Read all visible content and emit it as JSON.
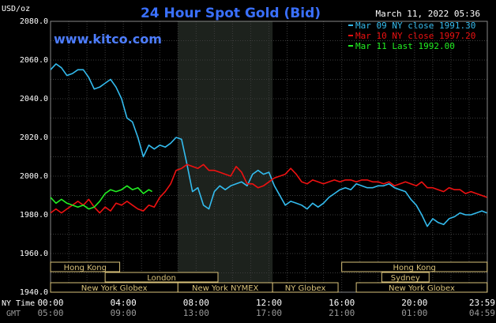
{
  "chart_data": {
    "type": "line",
    "title": "24 Hour Spot Gold (Bid)",
    "source": "www.kitco.com",
    "date_label": "March 11, 2022 05:36",
    "ylabel": "USD/oz",
    "ylim": [
      1940,
      2080
    ],
    "y_ticks": [
      "2080.0",
      "2060.0",
      "2040.0",
      "2020.0",
      "2000.0",
      "1980.0",
      "1960.0",
      "1940.0"
    ],
    "x_range_hours": [
      0,
      24
    ],
    "ny_time_label": "NY Time",
    "gmt_label": "GMT",
    "x_ticks_ny": [
      "00:00",
      "04:00",
      "08:00",
      "12:00",
      "16:00",
      "20:00",
      "23:59"
    ],
    "x_ticks_gmt": [
      "05:00",
      "09:00",
      "13:00",
      "17:00",
      "21:00",
      "01:00",
      "04:59"
    ],
    "x_tick_hours": [
      0,
      4,
      8,
      12,
      16,
      20,
      23.98
    ],
    "grid": true,
    "highlight_hours": [
      7,
      12.2
    ],
    "legend": {
      "position": "top-right",
      "entries": [
        {
          "label": "Mar 09 NY close 1991.30",
          "color": "#33bbee"
        },
        {
          "label": "Mar 10 NY close 1997.20",
          "color": "#ee1111"
        },
        {
          "label": "Mar 11 Last 1992.00",
          "color": "#22ee22"
        }
      ]
    },
    "sessions": [
      {
        "row": 0,
        "label": "Hong Kong",
        "start": 0,
        "end": 3.8
      },
      {
        "row": 0,
        "label": "Hong Kong",
        "start": 16,
        "end": 23.99
      },
      {
        "row": 1,
        "label": "London",
        "start": 3.0,
        "end": 9.2
      },
      {
        "row": 1,
        "label": "Sydney",
        "start": 18.2,
        "end": 20.8
      },
      {
        "row": 2,
        "label": "New York Globex",
        "start": 0,
        "end": 7.0
      },
      {
        "row": 2,
        "label": "New York NYMEX",
        "start": 7.0,
        "end": 12.2
      },
      {
        "row": 2,
        "label": "NY Globex",
        "start": 12.2,
        "end": 15.8
      },
      {
        "row": 2,
        "label": "New York Globex",
        "start": 16.8,
        "end": 23.99
      }
    ],
    "series": [
      {
        "name": "Mar 09",
        "color": "#33bbee",
        "x": [
          0,
          0.3,
          0.6,
          0.9,
          1.2,
          1.5,
          1.8,
          2.1,
          2.4,
          2.7,
          3.0,
          3.3,
          3.6,
          3.9,
          4.2,
          4.5,
          4.8,
          5.1,
          5.4,
          5.7,
          6.0,
          6.3,
          6.6,
          6.9,
          7.2,
          7.5,
          7.8,
          8.1,
          8.4,
          8.7,
          9.0,
          9.3,
          9.6,
          9.9,
          10.2,
          10.5,
          10.8,
          11.1,
          11.4,
          11.7,
          12.0,
          12.3,
          12.6,
          12.9,
          13.2,
          13.5,
          13.8,
          14.1,
          14.4,
          14.7,
          15.0,
          15.3,
          15.6,
          15.9,
          16.2,
          16.5,
          16.8,
          17.1,
          17.4,
          17.7,
          18.0,
          18.3,
          18.6,
          18.9,
          19.2,
          19.5,
          19.8,
          20.1,
          20.4,
          20.7,
          21.0,
          21.3,
          21.6,
          21.9,
          22.2,
          22.5,
          22.8,
          23.1,
          23.4,
          23.7,
          23.98
        ],
        "y": [
          2055,
          2058,
          2056,
          2052,
          2053,
          2055,
          2055,
          2051,
          2045,
          2046,
          2048,
          2050,
          2046,
          2040,
          2030,
          2028,
          2020,
          2010,
          2016,
          2014,
          2016,
          2015,
          2017,
          2020,
          2019,
          2006,
          1992,
          1994,
          1985,
          1983,
          1992,
          1995,
          1993,
          1995,
          1996,
          1997,
          1995,
          2001,
          2003,
          2001,
          2002,
          1995,
          1990,
          1985,
          1987,
          1986,
          1985,
          1983,
          1986,
          1984,
          1986,
          1989,
          1991,
          1993,
          1994,
          1993,
          1996,
          1995,
          1994,
          1994,
          1995,
          1995,
          1996,
          1994,
          1993,
          1992,
          1988,
          1985,
          1980,
          1974,
          1978,
          1976,
          1975,
          1978,
          1979,
          1981,
          1980,
          1980,
          1981,
          1982,
          1981
        ]
      },
      {
        "name": "Mar 10",
        "color": "#ee1111",
        "x": [
          0,
          0.3,
          0.6,
          0.9,
          1.2,
          1.5,
          1.8,
          2.1,
          2.4,
          2.7,
          3.0,
          3.3,
          3.6,
          3.9,
          4.2,
          4.5,
          4.8,
          5.1,
          5.4,
          5.7,
          6.0,
          6.3,
          6.6,
          6.9,
          7.2,
          7.5,
          7.8,
          8.1,
          8.4,
          8.7,
          9.0,
          9.3,
          9.6,
          9.9,
          10.2,
          10.5,
          10.8,
          11.1,
          11.4,
          11.7,
          12.0,
          12.3,
          12.6,
          12.9,
          13.2,
          13.5,
          13.8,
          14.1,
          14.4,
          14.7,
          15.0,
          15.3,
          15.6,
          15.9,
          16.2,
          16.5,
          16.8,
          17.1,
          17.4,
          17.7,
          18.0,
          18.3,
          18.6,
          18.9,
          19.2,
          19.5,
          19.8,
          20.1,
          20.4,
          20.7,
          21.0,
          21.3,
          21.6,
          21.9,
          22.2,
          22.5,
          22.8,
          23.1,
          23.4,
          23.7,
          23.98
        ],
        "y": [
          1981,
          1983,
          1981,
          1983,
          1985,
          1987,
          1985,
          1988,
          1984,
          1981,
          1984,
          1982,
          1986,
          1985,
          1987,
          1985,
          1983,
          1982,
          1985,
          1984,
          1989,
          1992,
          1996,
          2003,
          2004,
          2006,
          2005,
          2004,
          2006,
          2003,
          2003,
          2002,
          2001,
          2000,
          2005,
          2002,
          1996,
          1996,
          1994,
          1995,
          1997,
          1999,
          2000,
          2001,
          2004,
          2001,
          1997,
          1996,
          1998,
          1997,
          1996,
          1997,
          1998,
          1997,
          1998,
          1998,
          1997,
          1998,
          1998,
          1997,
          1997,
          1996,
          1997,
          1995,
          1996,
          1997,
          1996,
          1995,
          1997,
          1994,
          1994,
          1993,
          1992,
          1994,
          1993,
          1993,
          1991,
          1992,
          1991,
          1990,
          1989
        ]
      },
      {
        "name": "Mar 11",
        "color": "#22ee22",
        "x": [
          0,
          0.3,
          0.6,
          0.9,
          1.2,
          1.5,
          1.8,
          2.1,
          2.4,
          2.7,
          3.0,
          3.3,
          3.6,
          3.9,
          4.2,
          4.5,
          4.8,
          5.1,
          5.4,
          5.58
        ],
        "y": [
          1989,
          1986,
          1988,
          1986,
          1985,
          1984,
          1985,
          1983,
          1984,
          1987,
          1991,
          1993,
          1992,
          1993,
          1995,
          1993,
          1994,
          1991,
          1993,
          1992
        ]
      }
    ]
  }
}
